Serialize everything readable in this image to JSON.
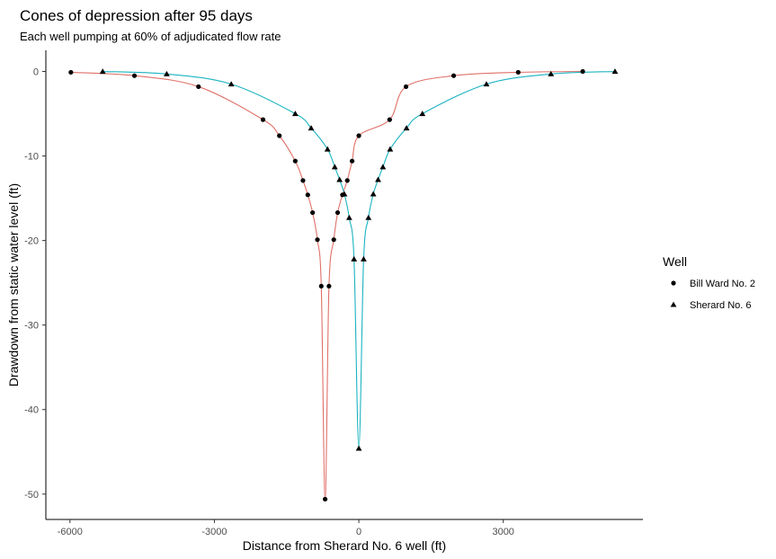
{
  "chart_data": {
    "type": "line",
    "title": "Cones of depression after 95 days",
    "subtitle": "Each well pumping at 60% of adjudicated flow rate",
    "xlabel": "Distance from Sherard No. 6 well (ft)",
    "ylabel": "Drawdown from static water level (ft)",
    "xlim": [
      -6500,
      5900
    ],
    "ylim": [
      -53,
      2.5
    ],
    "x_ticks": [
      -6000,
      -3000,
      0,
      3000
    ],
    "x_tick_labels": [
      "-6000",
      "-3000",
      "0",
      "3000"
    ],
    "y_ticks": [
      0,
      -10,
      -20,
      -30,
      -40,
      -50
    ],
    "y_tick_labels": [
      "0",
      "-10",
      "-20",
      "-30",
      "-40",
      "-50"
    ],
    "grid": false,
    "legend": {
      "title": "Well",
      "position": "right"
    },
    "series": [
      {
        "name": "Bill Ward No. 2",
        "marker": "circle",
        "color": "#e07068",
        "x": [
          -5980,
          -4660,
          -3330,
          -1990,
          -1650,
          -1320,
          -1160,
          -1060,
          -960,
          -860,
          -780,
          -700,
          -620,
          -520,
          -440,
          -340,
          -240,
          -140,
          0,
          640,
          980,
          1970,
          3310,
          4650
        ],
        "y": [
          -0.1,
          -0.5,
          -1.8,
          -5.7,
          -7.6,
          -10.6,
          -12.9,
          -14.6,
          -16.7,
          -19.9,
          -25.4,
          -50.6,
          -25.4,
          -19.9,
          -16.7,
          -14.6,
          -12.9,
          -10.6,
          -7.6,
          -5.7,
          -1.8,
          -0.5,
          -0.1,
          0
        ]
      },
      {
        "name": "Sherard No. 6",
        "marker": "triangle",
        "color": "#1ab3c1",
        "x": [
          -5320,
          -3990,
          -2650,
          -1320,
          -990,
          -650,
          -500,
          -400,
          -300,
          -200,
          -100,
          0,
          100,
          200,
          300,
          400,
          500,
          650,
          990,
          1320,
          2650,
          3990,
          5320
        ],
        "y": [
          0,
          -0.3,
          -1.5,
          -5.0,
          -6.7,
          -9.2,
          -11.3,
          -12.8,
          -14.5,
          -17.3,
          -22.2,
          -44.6,
          -22.2,
          -17.3,
          -14.5,
          -12.8,
          -11.3,
          -9.2,
          -6.7,
          -5.0,
          -1.5,
          -0.3,
          0
        ]
      }
    ]
  }
}
